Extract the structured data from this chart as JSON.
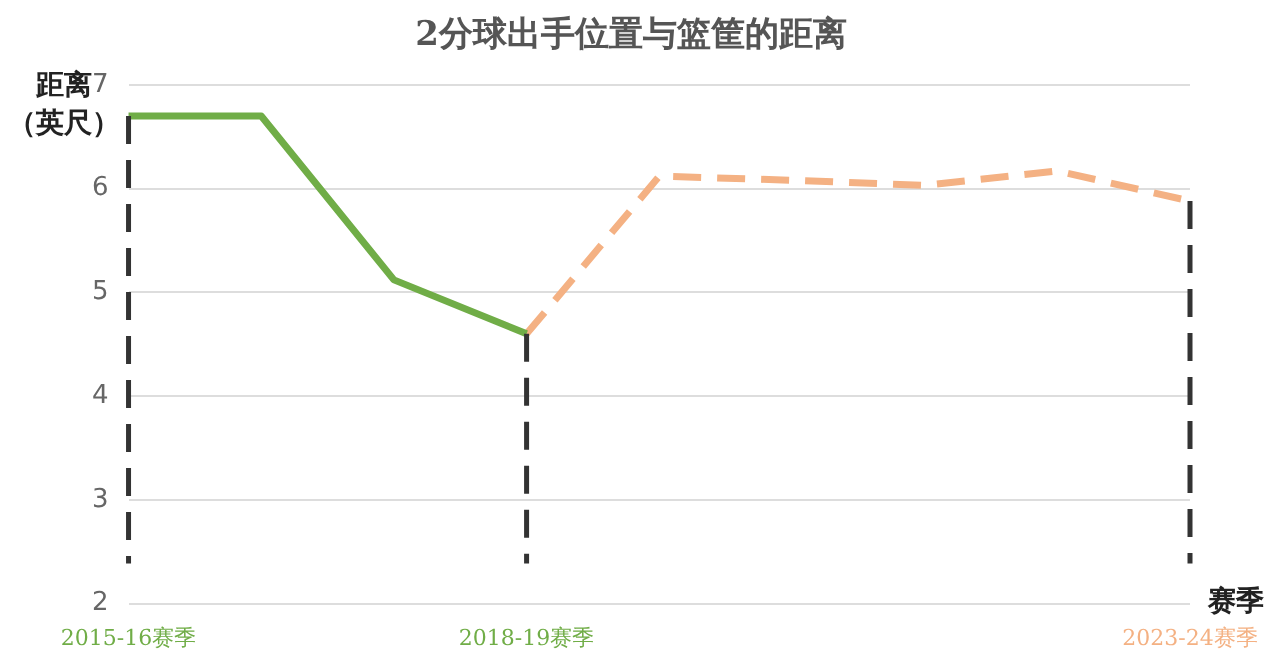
{
  "chart_data": {
    "type": "line",
    "title": "2分球出手位置与篮筐的距离",
    "ylabel": "距离（英尺）",
    "xlabel": "赛季",
    "categories": [
      "2015-16赛季",
      null,
      null,
      "2018-19赛季",
      null,
      null,
      null,
      null,
      "2023-24赛季"
    ],
    "ylim": [
      2,
      7
    ],
    "yticks": [
      2,
      3,
      4,
      5,
      6,
      7
    ],
    "grid": "y",
    "legend": false,
    "marker": "none",
    "series": [
      {
        "color": "#70ad47",
        "line_style": "solid",
        "values": [
          6.7,
          6.7,
          5.12,
          4.6,
          null,
          null,
          null,
          null,
          null
        ]
      },
      {
        "color": "#f4b183",
        "line_style": "dashed",
        "values": [
          null,
          null,
          null,
          4.6,
          6.12,
          6.08,
          6.03,
          6.17,
          5.88
        ]
      }
    ],
    "ref_lines": [
      {
        "axis": "x",
        "value": "2015-16赛季",
        "color": "#333333",
        "line_style": "dashed"
      },
      {
        "axis": "x",
        "value": "2018-19赛季",
        "color": "#333333",
        "line_style": "dashed"
      },
      {
        "axis": "x",
        "value": "2023-24赛季",
        "color": "#333333",
        "line_style": "dashed"
      }
    ]
  }
}
